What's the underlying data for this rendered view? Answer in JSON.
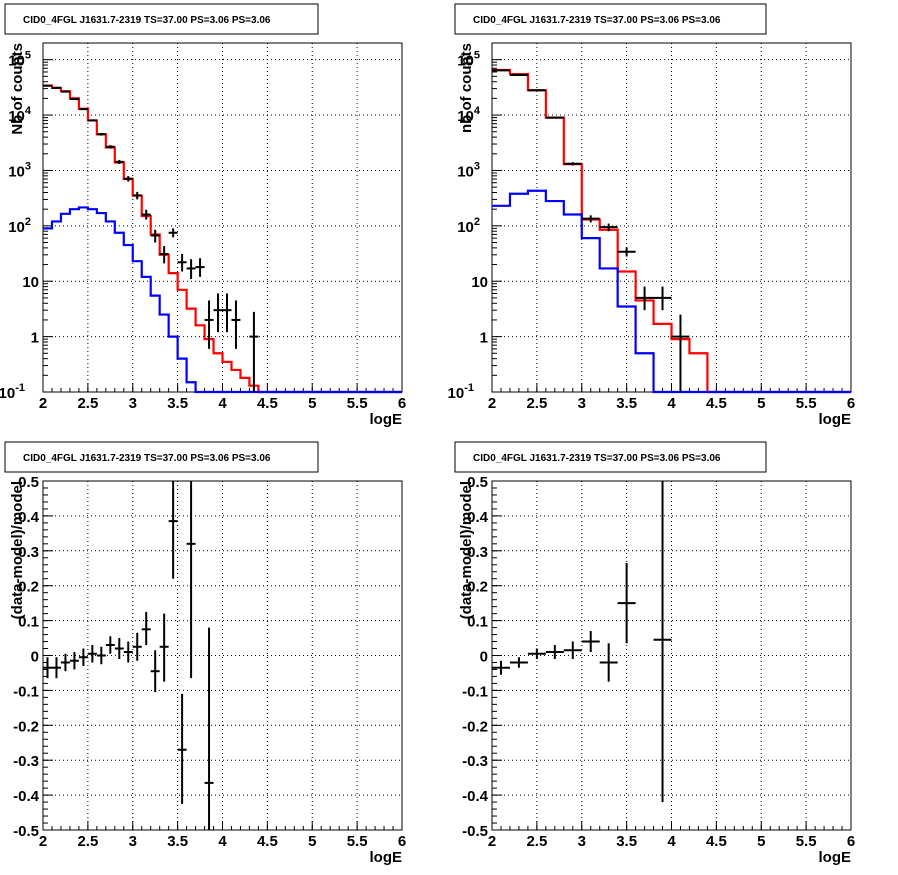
{
  "chart_data": [
    {
      "id": "p1",
      "type": "line",
      "title": "CID0_4FGL J1631.7-2319 TS=37.00 PS=3.06 PS=3.06",
      "xlabel": "logE",
      "ylabel": "Nb of counts",
      "xlim": [
        2,
        6
      ],
      "ylim": [
        0.1,
        200000
      ],
      "yscale": "log",
      "grid": true,
      "xticks": [
        "2",
        "2.5",
        "3",
        "3.5",
        "4",
        "4.5",
        "5",
        "5.5",
        "6"
      ],
      "yticks": [
        "10^-1",
        "1",
        "10",
        "10^2",
        "10^3",
        "10^4",
        "10^5"
      ],
      "series": [
        {
          "kind": "step",
          "color": "#ff0000",
          "edges": [
            2,
            2.1,
            2.2,
            2.3,
            2.4,
            2.5,
            2.6,
            2.7,
            2.8,
            2.9,
            3,
            3.1,
            3.2,
            3.3,
            3.4,
            3.5,
            3.6,
            3.7,
            3.8,
            3.9,
            4,
            4.1,
            4.2,
            4.3,
            4.4,
            4.5,
            6
          ],
          "values": [
            34000,
            31000,
            27000,
            20000,
            13000,
            8000,
            4500,
            2600,
            1400,
            700,
            350,
            150,
            70,
            30,
            14,
            7,
            3.2,
            1.6,
            0.9,
            0.5,
            0.35,
            0.25,
            0.18,
            0.13,
            0.09,
            0.09
          ]
        },
        {
          "kind": "step",
          "color": "#0000ff",
          "edges": [
            2,
            2.1,
            2.2,
            2.3,
            2.4,
            2.5,
            2.6,
            2.7,
            2.8,
            2.9,
            3,
            3.1,
            3.2,
            3.3,
            3.4,
            3.5,
            3.6,
            3.7,
            3.8,
            3.9,
            6
          ],
          "values": [
            90,
            120,
            165,
            200,
            215,
            200,
            170,
            120,
            75,
            45,
            23,
            12,
            5.5,
            2.5,
            1,
            0.4,
            0.15,
            0.1,
            0.1,
            0.1
          ]
        },
        {
          "kind": "errorbars",
          "color": "#000000",
          "points": [
            {
              "x": 2.05,
              "y": 34000,
              "xerr": 0.05,
              "ylo": 33000,
              "yhi": 35000
            },
            {
              "x": 2.15,
              "y": 31000,
              "xerr": 0.05,
              "ylo": 30000,
              "yhi": 32000
            },
            {
              "x": 2.25,
              "y": 26500,
              "xerr": 0.05,
              "ylo": 25700,
              "yhi": 27300
            },
            {
              "x": 2.35,
              "y": 19500,
              "xerr": 0.05,
              "ylo": 18800,
              "yhi": 20200
            },
            {
              "x": 2.45,
              "y": 12800,
              "xerr": 0.05,
              "ylo": 12300,
              "yhi": 13300
            },
            {
              "x": 2.55,
              "y": 8000,
              "xerr": 0.05,
              "ylo": 7650,
              "yhi": 8350
            },
            {
              "x": 2.65,
              "y": 4500,
              "xerr": 0.05,
              "ylo": 4250,
              "yhi": 4750
            },
            {
              "x": 2.75,
              "y": 2680,
              "xerr": 0.05,
              "ylo": 2500,
              "yhi": 2860
            },
            {
              "x": 2.85,
              "y": 1430,
              "xerr": 0.05,
              "ylo": 1310,
              "yhi": 1550
            },
            {
              "x": 2.95,
              "y": 710,
              "xerr": 0.05,
              "ylo": 630,
              "yhi": 790
            },
            {
              "x": 3.05,
              "y": 355,
              "xerr": 0.05,
              "ylo": 300,
              "yhi": 410
            },
            {
              "x": 3.15,
              "y": 160,
              "xerr": 0.05,
              "ylo": 130,
              "yhi": 195
            },
            {
              "x": 3.25,
              "y": 67,
              "xerr": 0.05,
              "ylo": 50,
              "yhi": 85
            },
            {
              "x": 3.35,
              "y": 31,
              "xerr": 0.05,
              "ylo": 21,
              "yhi": 43
            },
            {
              "x": 3.45,
              "y": 75,
              "xerr": 0.05,
              "ylo": 62,
              "yhi": 90
            },
            {
              "x": 3.55,
              "y": 22,
              "xerr": 0.05,
              "ylo": 15,
              "yhi": 31
            },
            {
              "x": 3.65,
              "y": 17,
              "xerr": 0.05,
              "ylo": 11,
              "yhi": 25
            },
            {
              "x": 3.75,
              "y": 18,
              "xerr": 0.05,
              "ylo": 12,
              "yhi": 26
            },
            {
              "x": 3.85,
              "y": 2,
              "xerr": 0.05,
              "ylo": 0.6,
              "yhi": 4.5
            },
            {
              "x": 3.95,
              "y": 3,
              "xerr": 0.05,
              "ylo": 1.2,
              "yhi": 6
            },
            {
              "x": 4.05,
              "y": 3,
              "xerr": 0.05,
              "ylo": 1.2,
              "yhi": 6
            },
            {
              "x": 4.15,
              "y": 2,
              "xerr": 0.05,
              "ylo": 0.6,
              "yhi": 4.5
            },
            {
              "x": 4.35,
              "y": 1,
              "xerr": 0.05,
              "ylo": 0.1,
              "yhi": 2.8
            }
          ]
        }
      ]
    },
    {
      "id": "p2",
      "type": "line",
      "title": "CID0_4FGL J1631.7-2319 TS=37.00 PS=3.06 PS=3.06",
      "xlabel": "logE",
      "ylabel": "nb of counts",
      "xlim": [
        2,
        6
      ],
      "ylim": [
        0.1,
        200000
      ],
      "yscale": "log",
      "grid": true,
      "xticks": [
        "2",
        "2.5",
        "3",
        "3.5",
        "4",
        "4.5",
        "5",
        "5.5",
        "6"
      ],
      "yticks": [
        "10^-1",
        "1",
        "10",
        "10^2",
        "10^3",
        "10^4",
        "10^5"
      ],
      "series": [
        {
          "kind": "step",
          "color": "#ff0000",
          "edges": [
            2,
            2.2,
            2.4,
            2.6,
            2.8,
            3,
            3.2,
            3.4,
            3.6,
            3.8,
            4,
            4.2,
            4.4,
            4.6,
            6
          ],
          "values": [
            65000,
            55000,
            28000,
            9000,
            1300,
            130,
            85,
            15,
            4.5,
            1.7,
            0.9,
            0.5,
            0.1,
            0.1
          ]
        },
        {
          "kind": "step",
          "color": "#0000ff",
          "edges": [
            2,
            2.2,
            2.4,
            2.6,
            2.8,
            3,
            3.2,
            3.4,
            3.6,
            3.8,
            6
          ],
          "values": [
            230,
            380,
            430,
            280,
            160,
            60,
            17,
            3.5,
            0.5,
            0.1
          ]
        },
        {
          "kind": "errorbars",
          "color": "#000000",
          "points": [
            {
              "x": 2.1,
              "y": 64000,
              "xerr": 0.1,
              "ylo": 63000,
              "yhi": 65000
            },
            {
              "x": 2.3,
              "y": 53000,
              "xerr": 0.1,
              "ylo": 52000,
              "yhi": 54000
            },
            {
              "x": 2.5,
              "y": 28000,
              "xerr": 0.1,
              "ylo": 27500,
              "yhi": 28500
            },
            {
              "x": 2.7,
              "y": 9000,
              "xerr": 0.1,
              "ylo": 8700,
              "yhi": 9300
            },
            {
              "x": 2.9,
              "y": 1320,
              "xerr": 0.1,
              "ylo": 1230,
              "yhi": 1410
            },
            {
              "x": 3.1,
              "y": 135,
              "xerr": 0.1,
              "ylo": 115,
              "yhi": 155
            },
            {
              "x": 3.3,
              "y": 95,
              "xerr": 0.1,
              "ylo": 80,
              "yhi": 110
            },
            {
              "x": 3.5,
              "y": 34,
              "xerr": 0.1,
              "ylo": 28,
              "yhi": 41
            },
            {
              "x": 3.7,
              "y": 5,
              "xerr": 0.1,
              "ylo": 3,
              "yhi": 8
            },
            {
              "x": 3.9,
              "y": 5,
              "xerr": 0.1,
              "ylo": 3,
              "yhi": 8
            },
            {
              "x": 4.1,
              "y": 1,
              "xerr": 0.1,
              "ylo": 0.1,
              "yhi": 2.5
            }
          ]
        }
      ]
    },
    {
      "id": "p3",
      "type": "scatter",
      "title": "CID0_4FGL J1631.7-2319 TS=37.00 PS=3.06 PS=3.06",
      "xlabel": "logE",
      "ylabel": "(data-model)/model",
      "xlim": [
        2,
        6
      ],
      "ylim": [
        -0.5,
        0.5
      ],
      "yscale": "linear",
      "grid": true,
      "xticks": [
        "2",
        "2.5",
        "3",
        "3.5",
        "4",
        "4.5",
        "5",
        "5.5",
        "6"
      ],
      "yticks": [
        "-0.5",
        "-0.4",
        "-0.3",
        "-0.2",
        "-0.1",
        "0",
        "0.1",
        "0.2",
        "0.3",
        "0.4",
        "0.5"
      ],
      "series": [
        {
          "kind": "errorbars",
          "color": "#000000",
          "points": [
            {
              "x": 2.05,
              "y": -0.035,
              "xerr": 0.05,
              "ylo": -0.065,
              "yhi": -0.005
            },
            {
              "x": 2.15,
              "y": -0.035,
              "xerr": 0.05,
              "ylo": -0.065,
              "yhi": -0.005
            },
            {
              "x": 2.25,
              "y": -0.02,
              "xerr": 0.05,
              "ylo": -0.045,
              "yhi": 0.005
            },
            {
              "x": 2.35,
              "y": -0.015,
              "xerr": 0.05,
              "ylo": -0.04,
              "yhi": 0.01
            },
            {
              "x": 2.45,
              "y": -0.005,
              "xerr": 0.05,
              "ylo": -0.03,
              "yhi": 0.02
            },
            {
              "x": 2.55,
              "y": 0.005,
              "xerr": 0.05,
              "ylo": -0.02,
              "yhi": 0.03
            },
            {
              "x": 2.65,
              "y": 0,
              "xerr": 0.05,
              "ylo": -0.025,
              "yhi": 0.025
            },
            {
              "x": 2.75,
              "y": 0.03,
              "xerr": 0.05,
              "ylo": 0.005,
              "yhi": 0.055
            },
            {
              "x": 2.85,
              "y": 0.02,
              "xerr": 0.05,
              "ylo": -0.01,
              "yhi": 0.05
            },
            {
              "x": 2.95,
              "y": 0.01,
              "xerr": 0.05,
              "ylo": -0.02,
              "yhi": 0.04
            },
            {
              "x": 3.05,
              "y": 0.025,
              "xerr": 0.05,
              "ylo": -0.015,
              "yhi": 0.065
            },
            {
              "x": 3.15,
              "y": 0.075,
              "xerr": 0.05,
              "ylo": 0.03,
              "yhi": 0.125
            },
            {
              "x": 3.25,
              "y": -0.045,
              "xerr": 0.05,
              "ylo": -0.105,
              "yhi": 0.015
            },
            {
              "x": 3.35,
              "y": 0.025,
              "xerr": 0.05,
              "ylo": -0.075,
              "yhi": 0.12
            },
            {
              "x": 3.45,
              "y": 0.385,
              "xerr": 0.05,
              "ylo": 0.22,
              "yhi": 0.5
            },
            {
              "x": 3.55,
              "y": -0.27,
              "xerr": 0.05,
              "ylo": -0.425,
              "yhi": -0.11
            },
            {
              "x": 3.65,
              "y": 0.32,
              "xerr": 0.05,
              "ylo": -0.065,
              "yhi": 0.5
            },
            {
              "x": 3.85,
              "y": -0.365,
              "xerr": 0.05,
              "ylo": -0.5,
              "yhi": 0.08
            }
          ]
        }
      ]
    },
    {
      "id": "p4",
      "type": "scatter",
      "title": "CID0_4FGL J1631.7-2319 TS=37.00 PS=3.06 PS=3.06",
      "xlabel": "logE",
      "ylabel": "(data-model)/model",
      "xlim": [
        2,
        6
      ],
      "ylim": [
        -0.5,
        0.5
      ],
      "yscale": "linear",
      "grid": true,
      "xticks": [
        "2",
        "2.5",
        "3",
        "3.5",
        "4",
        "4.5",
        "5",
        "5.5",
        "6"
      ],
      "yticks": [
        "-0.5",
        "-0.4",
        "-0.3",
        "-0.2",
        "-0.1",
        "0",
        "0.1",
        "0.2",
        "0.3",
        "0.4",
        "0.5"
      ],
      "series": [
        {
          "kind": "errorbars",
          "color": "#000000",
          "points": [
            {
              "x": 2.1,
              "y": -0.035,
              "xerr": 0.1,
              "ylo": -0.055,
              "yhi": -0.015
            },
            {
              "x": 2.3,
              "y": -0.02,
              "xerr": 0.1,
              "ylo": -0.035,
              "yhi": -0.005
            },
            {
              "x": 2.5,
              "y": 0.005,
              "xerr": 0.1,
              "ylo": -0.01,
              "yhi": 0.02
            },
            {
              "x": 2.7,
              "y": 0.01,
              "xerr": 0.1,
              "ylo": -0.01,
              "yhi": 0.03
            },
            {
              "x": 2.9,
              "y": 0.015,
              "xerr": 0.1,
              "ylo": -0.01,
              "yhi": 0.04
            },
            {
              "x": 3.1,
              "y": 0.04,
              "xerr": 0.1,
              "ylo": 0.01,
              "yhi": 0.07
            },
            {
              "x": 3.3,
              "y": -0.02,
              "xerr": 0.1,
              "ylo": -0.075,
              "yhi": 0.035
            },
            {
              "x": 3.5,
              "y": 0.15,
              "xerr": 0.1,
              "ylo": 0.035,
              "yhi": 0.265
            },
            {
              "x": 3.9,
              "y": 0.045,
              "xerr": 0.1,
              "ylo": -0.42,
              "yhi": 0.5
            }
          ]
        }
      ]
    }
  ]
}
